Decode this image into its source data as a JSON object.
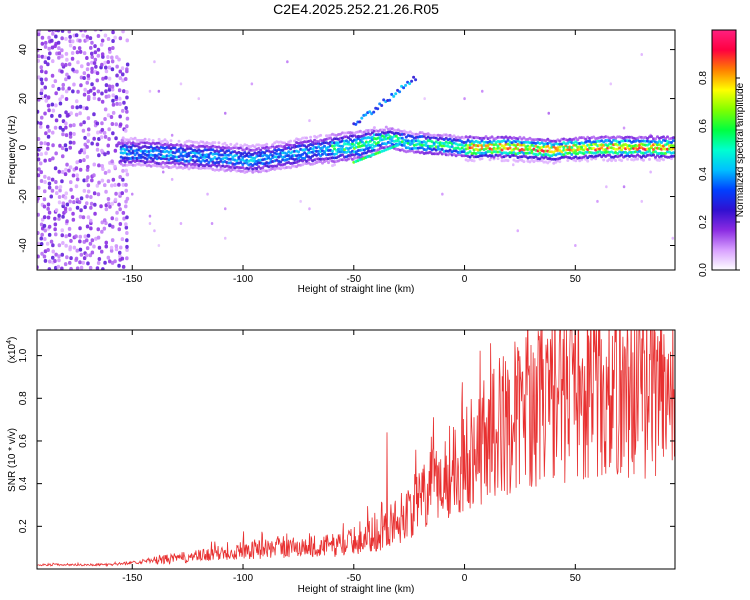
{
  "title": "C2E4.2025.252.21.26.R05",
  "chart_data": [
    {
      "type": "heatmap",
      "name": "spectrogram",
      "xlabel": "Height of straight line (km)",
      "ylabel": "Frequency (Hz)",
      "xlim": [
        -193,
        95
      ],
      "ylim": [
        -50,
        48
      ],
      "xticks": [
        -150,
        -100,
        -50,
        0,
        50
      ],
      "yticks": [
        -40,
        -20,
        0,
        20,
        40
      ],
      "colorbar": {
        "label": "Normalized spectral amplitude",
        "range": [
          0,
          1
        ],
        "ticks": [
          "0.0",
          "0.2",
          "0.4",
          "0.6",
          "0.8"
        ],
        "tick_values": [
          0.0,
          0.2,
          0.4,
          0.6,
          0.8
        ],
        "colors": [
          "#ffffff",
          "#d8a0ff",
          "#8a2be2",
          "#3010d0",
          "#0040ff",
          "#00c0ff",
          "#00ffd0",
          "#00ff40",
          "#80ff00",
          "#ffff00",
          "#ff8000",
          "#ff0040",
          "#ff2080"
        ]
      },
      "ridge_km": [
        -150,
        -130,
        -110,
        -95,
        -80,
        -65,
        -55,
        -45,
        -35,
        -25,
        -10,
        0,
        20,
        40,
        60,
        80,
        95
      ],
      "ridge_hz": [
        -2,
        -3,
        -4,
        -5,
        -3,
        -1,
        0,
        1,
        4,
        2,
        1,
        0,
        0,
        -1,
        0,
        0,
        0
      ]
    },
    {
      "type": "line",
      "name": "snr",
      "xlabel": "Height of straight line (km)",
      "ylabel": "SNR (10 * v/v)",
      "multiplier": "(x10",
      "multiplier_exp": "4",
      "multiplier_close": ")",
      "color": "#e83030",
      "xlim": [
        -193,
        95
      ],
      "ylim": [
        0,
        1.12
      ],
      "xticks": [
        -150,
        -100,
        -50,
        0,
        50
      ],
      "yticks": [
        0.2,
        0.4,
        0.6,
        0.8,
        1.0
      ],
      "ytick_labels": [
        "0.2",
        "0.4",
        "0.6",
        "0.8",
        "1.0"
      ],
      "trend_km": [
        -193,
        -160,
        -140,
        -120,
        -100,
        -80,
        -60,
        -50,
        -40,
        -30,
        -20,
        -10,
        0,
        10,
        20,
        30,
        40,
        60,
        80,
        95
      ],
      "trend_snr": [
        0.02,
        0.02,
        0.04,
        0.06,
        0.09,
        0.1,
        0.11,
        0.13,
        0.16,
        0.23,
        0.32,
        0.43,
        0.53,
        0.62,
        0.7,
        0.76,
        0.8,
        0.82,
        0.84,
        0.86
      ],
      "spikes_km": [
        -35,
        -15,
        35,
        80,
        90
      ],
      "spikes_snr": [
        0.64,
        0.62,
        1.12,
        1.08,
        1.1
      ]
    }
  ]
}
